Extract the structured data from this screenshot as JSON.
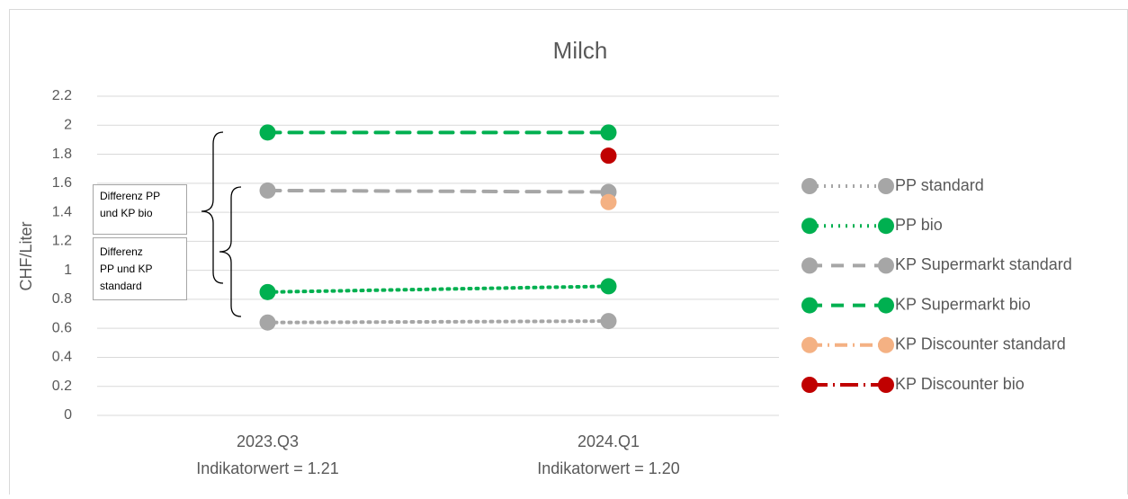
{
  "chart_data": {
    "type": "line",
    "title": "Milch",
    "y_label": "CHF/Liter",
    "categories": [
      "2023.Q3",
      "2024.Q1"
    ],
    "category_sublabels": [
      "Indikatorwert = 1.21",
      "Indikatorwert = 1.20"
    ],
    "series": [
      {
        "name": "PP standard",
        "color": "#a6a6a6",
        "line_style": "dotted",
        "values": [
          0.64,
          0.65
        ]
      },
      {
        "name": "PP bio",
        "color": "#00b050",
        "line_style": "dotted",
        "values": [
          0.85,
          0.89
        ]
      },
      {
        "name": "KP Supermarkt standard",
        "color": "#a6a6a6",
        "line_style": "dashed",
        "values": [
          1.55,
          1.54
        ]
      },
      {
        "name": "KP Supermarkt bio",
        "color": "#00b050",
        "line_style": "dashed",
        "values": [
          1.95,
          1.95
        ]
      },
      {
        "name": "KP Discounter standard",
        "color": "#f4b183",
        "line_style": "dashdot",
        "values": [
          null,
          1.47
        ]
      },
      {
        "name": "KP Discounter bio",
        "color": "#c00000",
        "line_style": "longdashdot",
        "values": [
          null,
          1.79
        ]
      }
    ],
    "ylim": [
      0,
      2.2
    ],
    "yticks": [
      0,
      0.2,
      0.4,
      0.6,
      0.8,
      1,
      1.2,
      1.4,
      1.6,
      1.8,
      2,
      2.2
    ],
    "grid": true,
    "legend": "right",
    "annotations": [
      {
        "lines": [
          "Differenz PP",
          "und KP bio"
        ]
      },
      {
        "lines": [
          "Differenz",
          "PP und KP",
          "standard"
        ]
      }
    ]
  }
}
